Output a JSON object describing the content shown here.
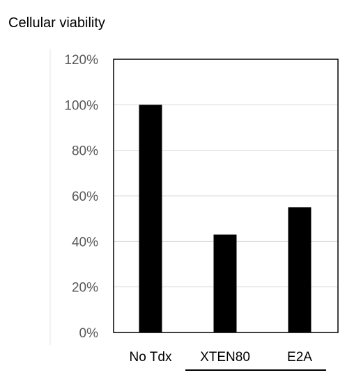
{
  "chart_data": {
    "type": "bar",
    "title": "Cellular viability",
    "xlabel": "",
    "ylabel": "",
    "categories": [
      "No Tdx",
      "XTEN80",
      "E2A"
    ],
    "values": [
      100,
      43,
      55
    ],
    "value_format": "percent",
    "ylim": [
      0,
      120
    ],
    "yticks": [
      0,
      20,
      40,
      60,
      80,
      100,
      120
    ],
    "ytick_labels": [
      "0%",
      "20%",
      "40%",
      "60%",
      "80%",
      "100%",
      "120%"
    ],
    "grid": true,
    "legend": "none",
    "bar_color": "#000000",
    "grid_color": "#d9d9d9",
    "tick_label_color": "#595959",
    "category_label_color": "#000000",
    "bracket": {
      "from_category": 1,
      "to_category": 2
    }
  }
}
